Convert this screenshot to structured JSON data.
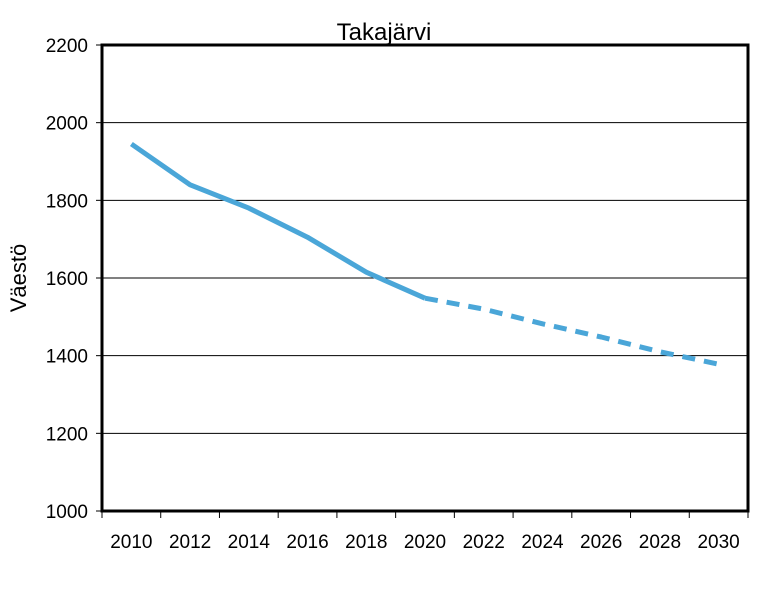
{
  "chart_data": {
    "type": "line",
    "title": "Takajärvi",
    "xlabel": "",
    "ylabel": "Väestö",
    "xlim": [
      2010,
      2030
    ],
    "ylim": [
      1000,
      2200
    ],
    "x_ticks": [
      2010,
      2012,
      2014,
      2016,
      2018,
      2020,
      2022,
      2024,
      2026,
      2028,
      2030
    ],
    "y_ticks": [
      1000,
      1200,
      1400,
      1600,
      1800,
      2000,
      2200
    ],
    "grid": "horizontal",
    "legend": "none",
    "series": [
      {
        "style": "solid",
        "color": "#4aa6d8",
        "x": [
          2010,
          2012,
          2014,
          2016,
          2018,
          2020
        ],
        "y": [
          1945,
          1840,
          1780,
          1705,
          1615,
          1548
        ]
      },
      {
        "style": "dashed",
        "color": "#4aa6d8",
        "x": [
          2020,
          2022,
          2024,
          2026,
          2028,
          2030
        ],
        "y": [
          1548,
          1520,
          1482,
          1448,
          1410,
          1378
        ]
      }
    ]
  }
}
